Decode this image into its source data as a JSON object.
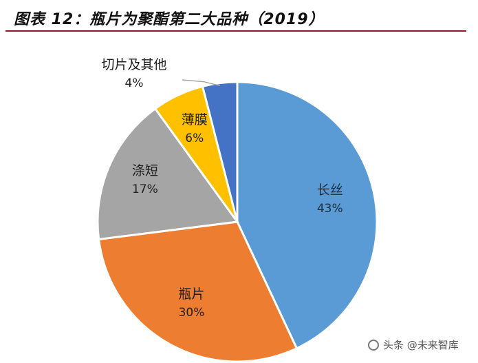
{
  "title": "图表 12：瓶片为聚酯第二大品种（2019）",
  "watermark": "头条 @未来智库",
  "chart_data": {
    "type": "pie",
    "title": "图表 12：瓶片为聚酯第二大品种（2019）",
    "slices": [
      {
        "label": "长丝",
        "value": 43,
        "value_label": "43%",
        "color": "#5b9bd5"
      },
      {
        "label": "瓶片",
        "value": 30,
        "value_label": "30%",
        "color": "#ed7d31"
      },
      {
        "label": "涤短",
        "value": 17,
        "value_label": "17%",
        "color": "#a5a5a5"
      },
      {
        "label": "薄膜",
        "value": 6,
        "value_label": "6%",
        "color": "#ffc000"
      },
      {
        "label": "切片及其他",
        "value": 4,
        "value_label": "4%",
        "color": "#4472c4"
      }
    ],
    "start": "12 o'clock",
    "direction": "clockwise",
    "legend": "none"
  }
}
